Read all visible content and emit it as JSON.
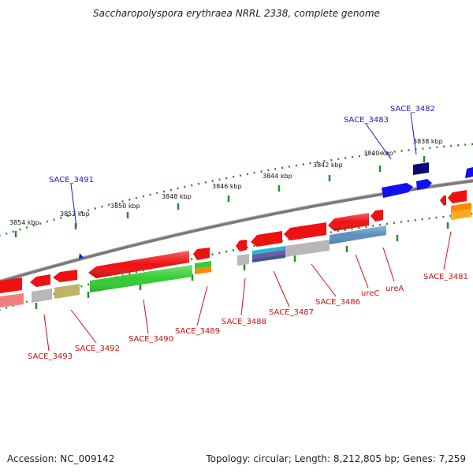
{
  "header": {
    "title": "Saccharopolyspora erythraea NRRL 2338, complete genome"
  },
  "footer": {
    "accession": "Accession: NC_009142",
    "topology": "Topology: circular; Length: 8,212,805 bp; Genes: 7,259"
  },
  "scale_labels": [
    "3854 kbp",
    "3852 kbp",
    "3850 kbp",
    "3848 kbp",
    "3846 kbp",
    "3844 kbp",
    "3842 kbp",
    "3840 kbp",
    "3838 kbp"
  ],
  "gene_labels_forward": [
    "SACE_3491",
    "SACE_3483",
    "SACE_3482"
  ],
  "gene_labels_reverse": [
    "SACE_3493",
    "SACE_3492",
    "SACE_3490",
    "SACE_3489",
    "SACE_3488",
    "SACE_3487",
    "SACE_3486",
    "ureC",
    "ureA",
    "SACE_3481"
  ],
  "colors": {
    "backbone": "#7a7a7a",
    "forward_label": "#1a1ad0",
    "reverse_label": "#d01010",
    "tick": "#2a8a2a",
    "gene_red": "#ee1111",
    "gene_blue": "#1111ee",
    "gene_navy": "#0a0a70",
    "cog_green": "#33cc33",
    "cog_gray": "#b8b8b8",
    "cog_khaki": "#bdb36a",
    "cog_steel": "#5b8fc0",
    "cog_cyan": "#22bbcc",
    "cog_orange": "#ff8800",
    "cog_pink": "#f08080"
  }
}
